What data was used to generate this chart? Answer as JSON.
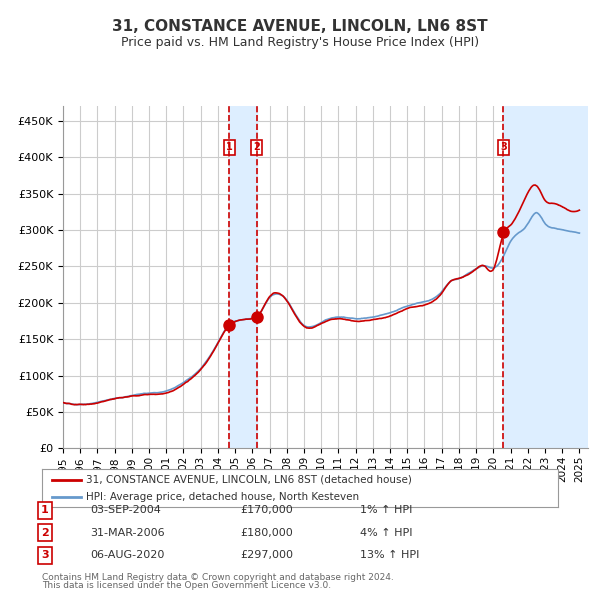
{
  "title": "31, CONSTANCE AVENUE, LINCOLN, LN6 8ST",
  "subtitle": "Price paid vs. HM Land Registry's House Price Index (HPI)",
  "legend_line1": "31, CONSTANCE AVENUE, LINCOLN, LN6 8ST (detached house)",
  "legend_line2": "HPI: Average price, detached house, North Kesteven",
  "footer1": "Contains HM Land Registry data © Crown copyright and database right 2024.",
  "footer2": "This data is licensed under the Open Government Licence v3.0.",
  "red_line_color": "#cc0000",
  "blue_line_color": "#6699cc",
  "blue_fill_color": "#ddeeff",
  "vline_color": "#cc0000",
  "grid_color": "#cccccc",
  "bg_color": "#ffffff",
  "transaction_box_color": "#cc0000",
  "ylim": [
    0,
    470000
  ],
  "yticks": [
    0,
    50000,
    100000,
    150000,
    200000,
    250000,
    300000,
    350000,
    400000,
    450000
  ],
  "xlim_start": 1995.0,
  "xlim_end": 2025.5,
  "transactions": [
    {
      "label": "1",
      "date": "03-SEP-2004",
      "price": 170000,
      "pct": "1%",
      "x": 2004.67
    },
    {
      "label": "2",
      "date": "31-MAR-2006",
      "price": 180000,
      "pct": "4%",
      "x": 2006.25
    },
    {
      "label": "3",
      "date": "06-AUG-2020",
      "price": 297000,
      "pct": "13%",
      "x": 2020.59
    }
  ],
  "shade_regions": [
    {
      "x_start": 2004.67,
      "x_end": 2006.25
    },
    {
      "x_start": 2020.59,
      "x_end": 2025.5
    }
  ]
}
